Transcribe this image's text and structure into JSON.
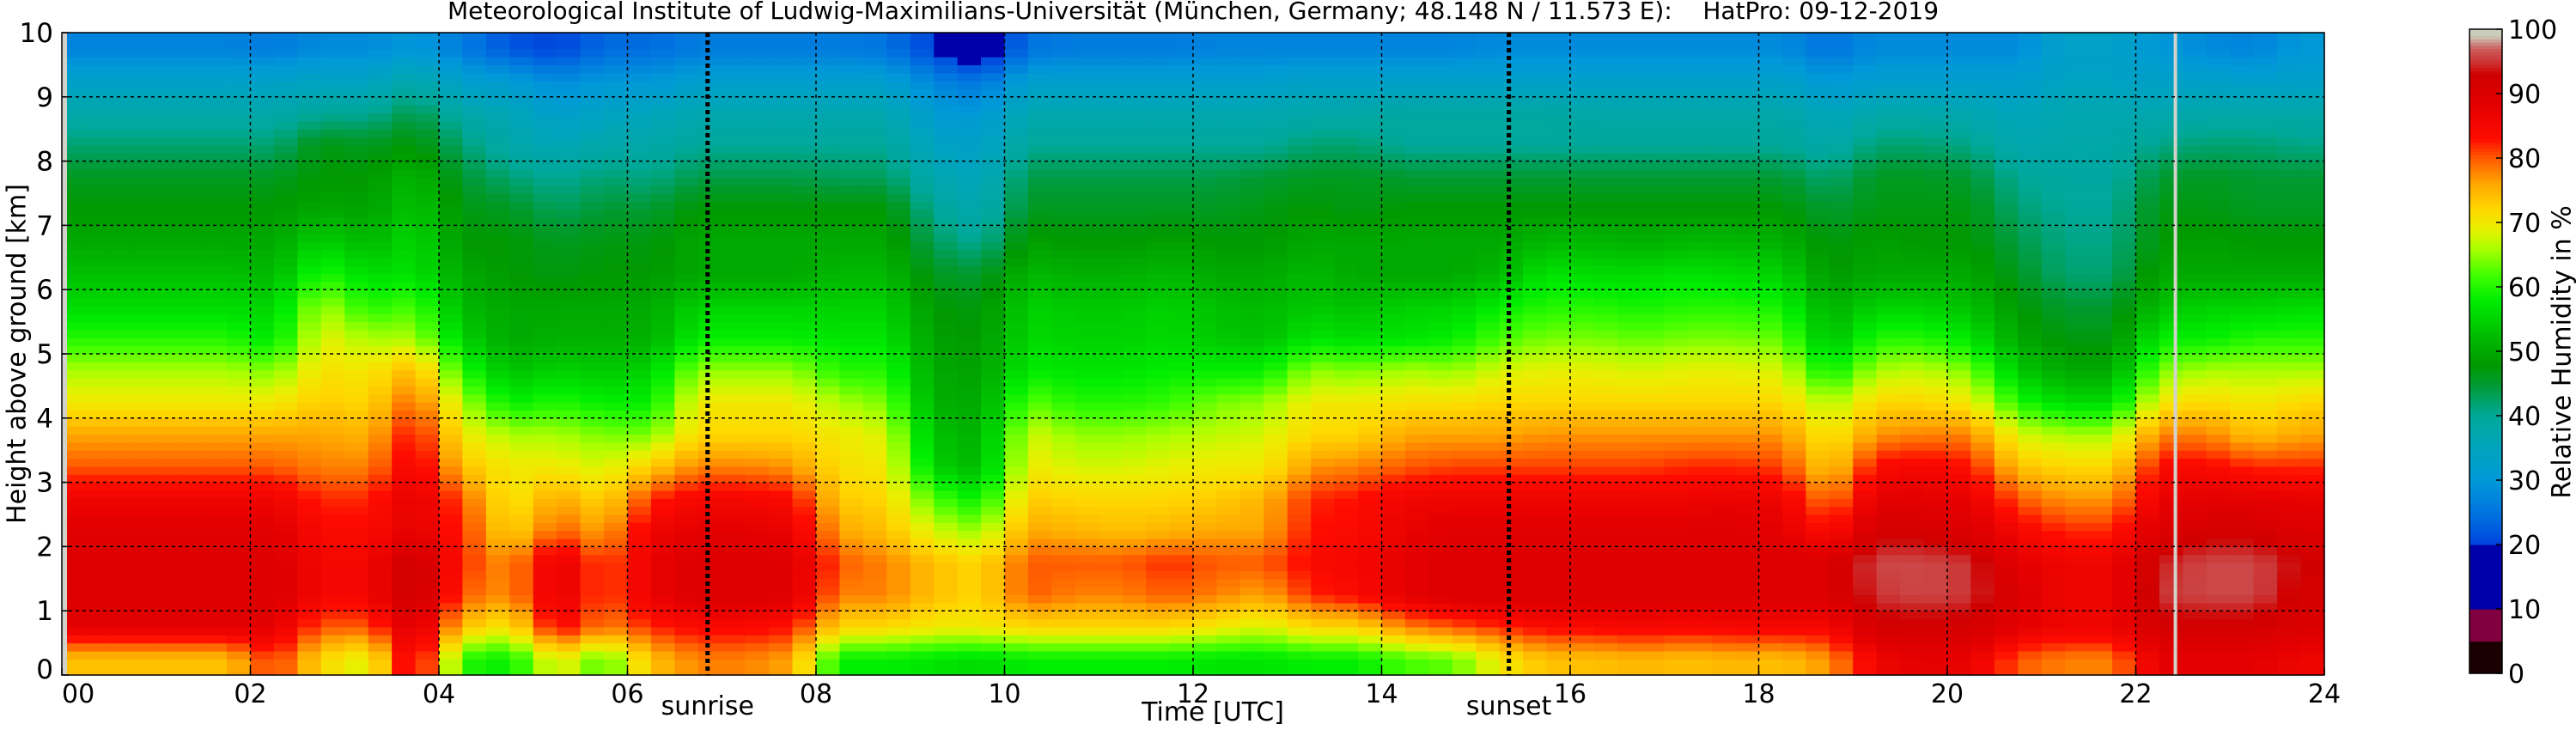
{
  "chart_data": {
    "type": "heatmap",
    "title": "Meteorological Institute of Ludwig-Maximilians-Universität (München, Germany; 48.148 N / 11.573 E):    HatPro: 09-12-2019",
    "xlabel": "Time [UTC]",
    "ylabel": "Height above ground [km]",
    "colorbar_label": "Relative Humidity in %",
    "xlim": [
      0,
      24
    ],
    "ylim": [
      0,
      10
    ],
    "clim": [
      0,
      100
    ],
    "grid": true,
    "x_tick_values": [
      0,
      2,
      4,
      6,
      8,
      10,
      12,
      14,
      16,
      18,
      20,
      22,
      24
    ],
    "x_tick_labels": [
      "00",
      "02",
      "04",
      "06",
      "08",
      "10",
      "12",
      "14",
      "16",
      "18",
      "20",
      "22",
      "24"
    ],
    "y_tick_values": [
      0,
      1,
      2,
      3,
      4,
      5,
      6,
      7,
      8,
      9,
      10
    ],
    "y_tick_labels": [
      "0",
      "1",
      "2",
      "3",
      "4",
      "5",
      "6",
      "7",
      "8",
      "9",
      "10"
    ],
    "colorbar_tick_values": [
      0,
      10,
      20,
      30,
      40,
      50,
      60,
      70,
      80,
      90,
      100
    ],
    "colorbar_tick_labels": [
      "0",
      "10",
      "20",
      "30",
      "40",
      "50",
      "60",
      "70",
      "80",
      "90",
      "100"
    ],
    "colormap": [
      {
        "v": 0,
        "c": "#1a0000"
      },
      {
        "v": 5,
        "c": "#1a0000"
      },
      {
        "v": 5.01,
        "c": "#800040"
      },
      {
        "v": 10,
        "c": "#800040"
      },
      {
        "v": 10.01,
        "c": "#0000aa"
      },
      {
        "v": 20,
        "c": "#0000aa"
      },
      {
        "v": 20.01,
        "c": "#0044dd"
      },
      {
        "v": 25,
        "c": "#0074e0"
      },
      {
        "v": 30,
        "c": "#0099d8"
      },
      {
        "v": 35,
        "c": "#00a4bc"
      },
      {
        "v": 40,
        "c": "#00a89a"
      },
      {
        "v": 45,
        "c": "#009a30"
      },
      {
        "v": 48,
        "c": "#009900"
      },
      {
        "v": 53,
        "c": "#00c000"
      },
      {
        "v": 58,
        "c": "#00ee00"
      },
      {
        "v": 62,
        "c": "#44ff00"
      },
      {
        "v": 66,
        "c": "#aaff00"
      },
      {
        "v": 69,
        "c": "#e8f000"
      },
      {
        "v": 72,
        "c": "#ffd800"
      },
      {
        "v": 76,
        "c": "#ffa800"
      },
      {
        "v": 80,
        "c": "#ff5a00"
      },
      {
        "v": 83,
        "c": "#ff0c00"
      },
      {
        "v": 88,
        "c": "#e40000"
      },
      {
        "v": 93,
        "c": "#d00000"
      },
      {
        "v": 95,
        "c": "#cc3434"
      },
      {
        "v": 97,
        "c": "#cc5c5c"
      },
      {
        "v": 99,
        "c": "#ccccbc"
      },
      {
        "v": 100,
        "c": "#ccccbc"
      }
    ],
    "annotations": [
      {
        "label": "sunrise",
        "x": 6.85
      },
      {
        "label": "sunset",
        "x": 15.35
      }
    ],
    "missing_times_hours": [
      0.0,
      22.42
    ],
    "x_hours": [
      0.25,
      0.75,
      1.25,
      1.75,
      2.25,
      2.75,
      3.25,
      3.75,
      4.25,
      4.75,
      5.25,
      5.75,
      6.25,
      6.75,
      7.25,
      7.75,
      8.25,
      8.75,
      9.25,
      9.75,
      10.25,
      10.75,
      11.25,
      11.75,
      12.25,
      12.75,
      13.25,
      13.75,
      14.25,
      14.75,
      15.25,
      15.75,
      16.25,
      16.75,
      17.25,
      17.75,
      18.25,
      18.75,
      19.25,
      19.75,
      20.25,
      20.75,
      21.25,
      21.75,
      22.25,
      22.75,
      23.25,
      23.75
    ],
    "y_km": [
      0.25,
      0.75,
      1.25,
      1.75,
      2.25,
      2.75,
      3.25,
      3.75,
      4.25,
      4.75,
      5.25,
      5.75,
      6.25,
      6.75,
      7.25,
      7.75,
      8.25,
      8.75,
      9.25,
      9.75
    ],
    "z_rh_percent": [
      [
        74,
        88,
        90,
        90,
        89,
        86,
        80,
        76,
        70,
        66,
        60,
        56,
        53,
        50,
        48,
        46,
        42,
        38,
        33,
        27
      ],
      [
        74,
        88,
        90,
        90,
        89,
        86,
        80,
        76,
        70,
        66,
        60,
        56,
        53,
        50,
        48,
        46,
        42,
        38,
        33,
        27
      ],
      [
        74,
        88,
        90,
        90,
        89,
        86,
        80,
        76,
        70,
        66,
        60,
        56,
        53,
        50,
        48,
        46,
        42,
        38,
        33,
        27
      ],
      [
        74,
        88,
        90,
        90,
        89,
        86,
        80,
        76,
        70,
        66,
        60,
        56,
        53,
        50,
        48,
        46,
        42,
        38,
        33,
        27
      ],
      [
        82,
        88,
        90,
        90,
        89,
        86,
        80,
        76,
        70,
        64,
        57,
        55,
        52,
        50,
        48,
        46,
        42,
        38,
        33,
        26
      ],
      [
        72,
        80,
        85,
        85,
        84,
        82,
        78,
        76,
        73,
        71,
        69,
        66,
        60,
        55,
        50,
        48,
        47,
        40,
        34,
        28
      ],
      [
        68,
        80,
        85,
        85,
        84,
        82,
        78,
        75,
        72,
        70,
        66,
        60,
        56,
        52,
        49,
        48,
        46,
        40,
        34,
        28
      ],
      [
        88,
        90,
        94,
        94,
        88,
        88,
        86,
        84,
        80,
        75,
        66,
        62,
        57,
        56,
        54,
        52,
        48,
        44,
        38,
        30
      ],
      [
        60,
        74,
        80,
        82,
        82,
        80,
        74,
        70,
        66,
        60,
        55,
        52,
        50,
        48,
        47,
        45,
        42,
        38,
        32,
        26
      ],
      [
        58,
        70,
        77,
        77,
        72,
        70,
        70,
        66,
        58,
        53,
        50,
        50,
        48,
        48,
        46,
        42,
        38,
        36,
        31,
        22
      ],
      [
        70,
        85,
        88,
        88,
        80,
        76,
        70,
        66,
        60,
        55,
        51,
        50,
        47,
        46,
        43,
        40,
        36,
        32,
        28,
        20
      ],
      [
        62,
        78,
        80,
        80,
        76,
        72,
        68,
        64,
        58,
        54,
        51,
        50,
        48,
        47,
        45,
        42,
        38,
        34,
        30,
        24
      ],
      [
        74,
        82,
        87,
        87,
        86,
        82,
        73,
        64,
        58,
        55,
        51,
        50,
        48,
        47,
        45,
        41,
        38,
        35,
        30,
        24
      ],
      [
        78,
        84,
        90,
        90,
        88,
        85,
        78,
        72,
        70,
        65,
        58,
        55,
        50,
        50,
        48,
        44,
        40,
        37,
        32,
        26
      ],
      [
        78,
        84,
        90,
        90,
        88,
        85,
        78,
        72,
        70,
        65,
        58,
        55,
        50,
        50,
        48,
        44,
        40,
        37,
        32,
        26
      ],
      [
        76,
        83,
        89,
        89,
        87,
        84,
        77,
        72,
        70,
        65,
        58,
        55,
        50,
        50,
        48,
        44,
        40,
        37,
        32,
        26
      ],
      [
        58,
        72,
        78,
        80,
        76,
        73,
        71,
        70,
        66,
        60,
        57,
        55,
        52,
        50,
        48,
        43,
        40,
        37,
        32,
        26
      ],
      [
        58,
        72,
        78,
        78,
        74,
        72,
        70,
        68,
        64,
        60,
        57,
        55,
        52,
        50,
        48,
        43,
        40,
        37,
        32,
        25
      ],
      [
        57,
        70,
        74,
        74,
        68,
        62,
        55,
        53,
        51,
        50,
        49,
        48,
        46,
        43,
        40,
        37,
        34,
        31,
        27,
        20
      ],
      [
        56,
        70,
        72,
        72,
        65,
        58,
        52,
        51,
        50,
        49,
        48,
        47,
        45,
        40,
        37,
        35,
        33,
        30,
        25,
        15
      ],
      [
        58,
        72,
        80,
        80,
        76,
        73,
        70,
        68,
        63,
        58,
        56,
        55,
        52,
        49,
        46,
        44,
        40,
        37,
        32,
        25
      ],
      [
        58,
        72,
        78,
        80,
        75,
        72,
        68,
        65,
        60,
        57,
        55,
        54,
        51,
        48,
        46,
        44,
        40,
        37,
        32,
        26
      ],
      [
        58,
        72,
        78,
        80,
        74,
        72,
        68,
        65,
        60,
        57,
        55,
        54,
        51,
        48,
        46,
        44,
        40,
        37,
        32,
        26
      ],
      [
        58,
        72,
        80,
        82,
        75,
        72,
        69,
        66,
        61,
        58,
        56,
        55,
        52,
        49,
        46,
        44,
        40,
        37,
        32,
        26
      ],
      [
        57,
        70,
        78,
        80,
        76,
        73,
        70,
        67,
        64,
        58,
        54,
        53,
        50,
        48,
        46,
        44,
        40,
        37,
        32,
        27
      ],
      [
        57,
        68,
        76,
        80,
        76,
        75,
        70,
        68,
        65,
        58,
        53,
        52,
        50,
        48,
        47,
        45,
        40,
        37,
        32,
        27
      ],
      [
        58,
        72,
        82,
        84,
        83,
        82,
        77,
        72,
        70,
        65,
        57,
        54,
        52,
        50,
        48,
        46,
        42,
        38,
        33,
        27
      ],
      [
        58,
        72,
        84,
        85,
        84,
        83,
        78,
        72,
        70,
        64,
        56,
        53,
        50,
        50,
        47,
        46,
        42,
        38,
        33,
        27
      ],
      [
        62,
        78,
        88,
        88,
        87,
        86,
        80,
        76,
        71,
        66,
        57,
        55,
        50,
        50,
        48,
        45,
        40,
        39,
        33,
        27
      ],
      [
        63,
        80,
        90,
        90,
        89,
        86,
        81,
        76,
        71,
        65,
        58,
        55,
        50,
        50,
        48,
        45,
        40,
        39,
        33,
        27
      ],
      [
        70,
        82,
        90,
        90,
        89,
        86,
        81,
        76,
        72,
        68,
        62,
        58,
        52,
        50,
        48,
        45,
        40,
        39,
        33,
        28
      ],
      [
        74,
        84,
        90,
        90,
        89,
        86,
        81,
        77,
        72,
        69,
        64,
        60,
        57,
        52,
        48,
        45,
        40,
        39,
        33,
        28
      ],
      [
        74,
        84,
        90,
        90,
        89,
        86,
        81,
        77,
        72,
        69,
        64,
        60,
        56,
        52,
        48,
        45,
        40,
        38,
        33,
        28
      ],
      [
        75,
        85,
        90,
        90,
        89,
        86,
        81,
        77,
        72,
        68,
        63,
        59,
        56,
        51,
        48,
        45,
        40,
        38,
        33,
        28
      ],
      [
        74,
        84,
        90,
        90,
        89,
        86,
        82,
        77,
        72,
        69,
        64,
        60,
        57,
        52,
        48,
        45,
        40,
        38,
        33,
        28
      ],
      [
        75,
        85,
        90,
        90,
        89,
        87,
        82,
        77,
        72,
        69,
        64,
        60,
        56,
        52,
        48,
        45,
        40,
        38,
        33,
        28
      ],
      [
        74,
        85,
        90,
        90,
        88,
        86,
        81,
        77,
        72,
        68,
        63,
        59,
        55,
        51,
        48,
        45,
        40,
        38,
        33,
        28
      ],
      [
        77,
        85,
        90,
        90,
        83,
        78,
        73,
        70,
        66,
        58,
        53,
        51,
        48,
        47,
        45,
        42,
        38,
        35,
        30,
        25
      ],
      [
        86,
        92,
        95,
        96,
        92,
        88,
        84,
        77,
        72,
        66,
        60,
        55,
        50,
        49,
        47,
        46,
        42,
        38,
        32,
        28
      ],
      [
        88,
        92,
        96,
        96,
        92,
        88,
        85,
        78,
        72,
        67,
        60,
        55,
        50,
        48,
        47,
        46,
        42,
        38,
        32,
        28
      ],
      [
        87,
        92,
        95,
        95,
        90,
        87,
        83,
        78,
        70,
        64,
        57,
        53,
        50,
        48,
        47,
        45,
        41,
        37,
        32,
        28
      ],
      [
        80,
        88,
        90,
        88,
        85,
        80,
        74,
        68,
        60,
        54,
        50,
        48,
        46,
        44,
        42,
        40,
        37,
        35,
        32,
        28
      ],
      [
        78,
        86,
        86,
        86,
        82,
        77,
        72,
        66,
        56,
        50,
        47,
        45,
        42,
        41,
        40,
        39,
        38,
        37,
        34,
        33
      ],
      [
        78,
        86,
        86,
        86,
        82,
        77,
        72,
        66,
        56,
        50,
        47,
        45,
        42,
        41,
        40,
        39,
        38,
        37,
        34,
        33
      ],
      [
        88,
        92,
        95,
        94,
        90,
        87,
        84,
        78,
        70,
        64,
        58,
        53,
        50,
        48,
        47,
        45,
        41,
        37,
        33,
        30
      ],
      [
        88,
        92,
        96,
        96,
        92,
        88,
        84,
        78,
        72,
        66,
        58,
        55,
        50,
        49,
        47,
        46,
        42,
        38,
        33,
        28
      ],
      [
        88,
        92,
        96,
        96,
        92,
        88,
        82,
        74,
        70,
        66,
        60,
        55,
        50,
        48,
        46,
        45,
        42,
        38,
        32,
        27
      ],
      [
        86,
        90,
        92,
        93,
        90,
        87,
        82,
        76,
        72,
        66,
        60,
        56,
        50,
        48,
        46,
        45,
        41,
        38,
        33,
        30
      ]
    ]
  }
}
